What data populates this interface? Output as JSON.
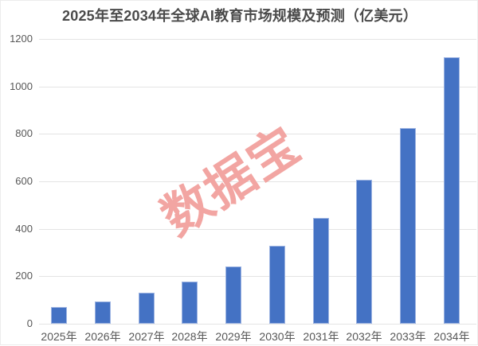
{
  "header": {
    "title": "2025年至2034年全球AI教育市场规模及预测（亿美元）"
  },
  "watermark": {
    "text": "数据宝"
  },
  "colors": {
    "bar_fill": "#4472C4",
    "bar_border": "#9DB4E2",
    "gridline": "#E4E4E4",
    "title_text": "#4A4A4A",
    "axis_text": "#575757",
    "watermark": "#F2A5A2",
    "background": "#FFFFFF"
  },
  "chart_data": {
    "type": "bar",
    "title": "2025年至2034年全球AI教育市场规模及预测（亿美元）",
    "categories": [
      "2025年",
      "2026年",
      "2027年",
      "2028年",
      "2029年",
      "2030年",
      "2031年",
      "2032年",
      "2033年",
      "2034年"
    ],
    "values": [
      70,
      95,
      130,
      178,
      241,
      328,
      446,
      608,
      826,
      1123
    ],
    "xlabel": "",
    "ylabel": "",
    "ylim": [
      0,
      1200
    ],
    "yticks": [
      0,
      200,
      400,
      600,
      800,
      1000,
      1200
    ],
    "grid": true,
    "legend_position": "none",
    "watermark": "数据宝"
  }
}
